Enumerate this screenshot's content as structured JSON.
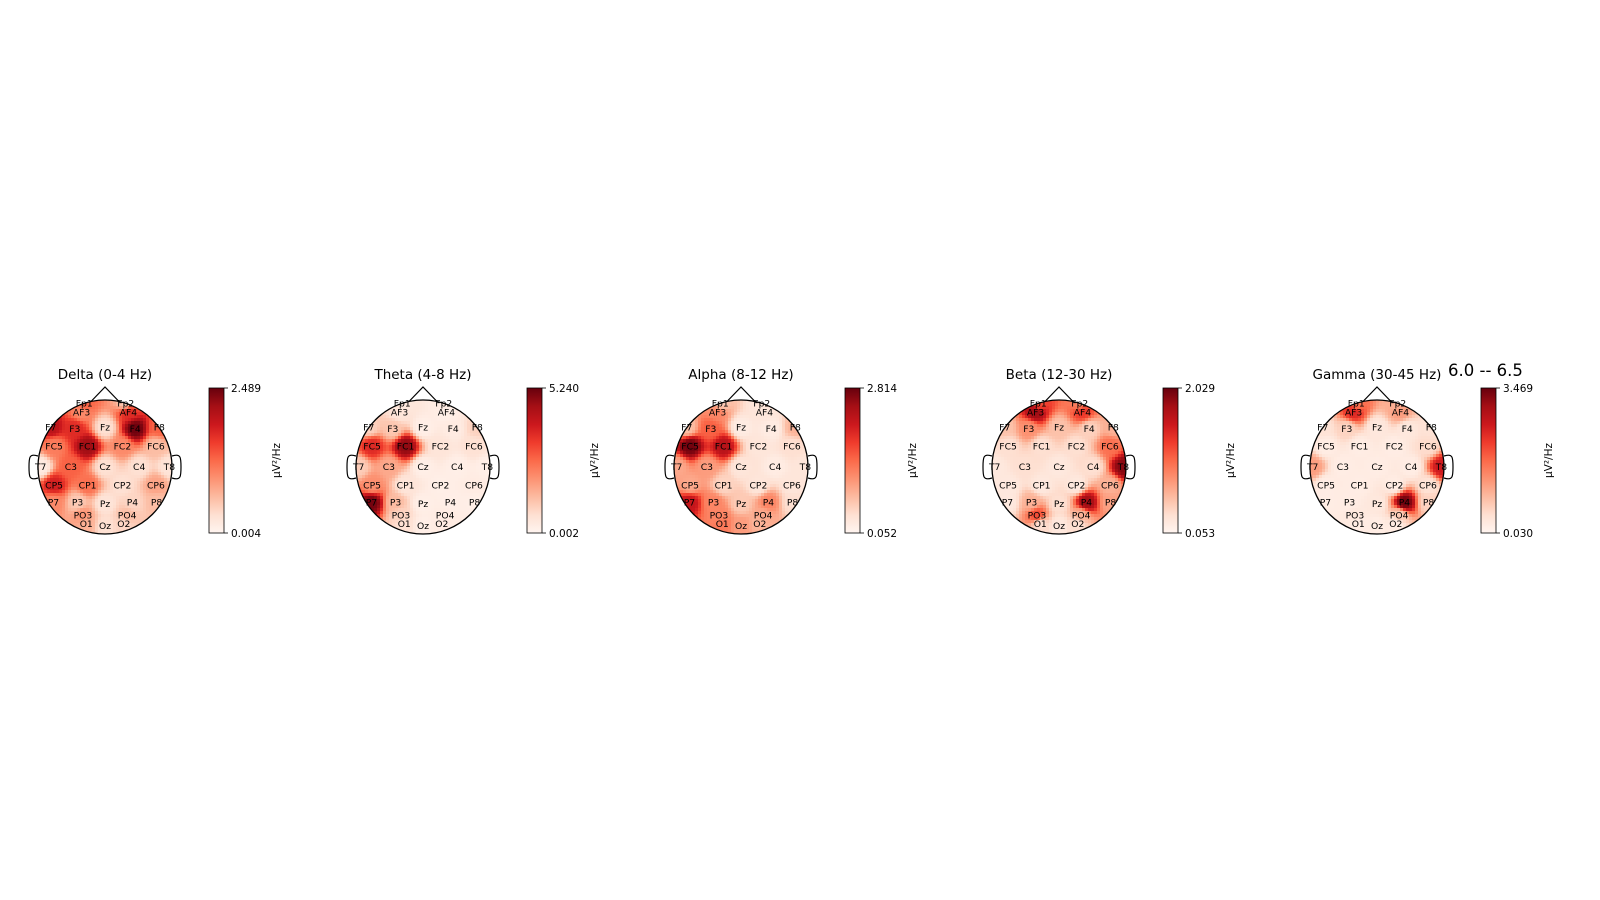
{
  "figure": {
    "suptitle": "6.0 -- 6.5"
  },
  "chart_data": {
    "type": "heatmap",
    "colormap": "Reds",
    "colorbar_label": "µV²/Hz",
    "electrodes": [
      {
        "name": "Fp1",
        "x": -0.31,
        "y": 0.95
      },
      {
        "name": "Fp2",
        "x": 0.31,
        "y": 0.95
      },
      {
        "name": "AF3",
        "x": -0.35,
        "y": 0.82
      },
      {
        "name": "AF4",
        "x": 0.35,
        "y": 0.82
      },
      {
        "name": "F7",
        "x": -0.81,
        "y": 0.59
      },
      {
        "name": "F3",
        "x": -0.45,
        "y": 0.57
      },
      {
        "name": "Fz",
        "x": 0.0,
        "y": 0.59
      },
      {
        "name": "F4",
        "x": 0.45,
        "y": 0.57
      },
      {
        "name": "F8",
        "x": 0.81,
        "y": 0.59
      },
      {
        "name": "FC5",
        "x": -0.76,
        "y": 0.31
      },
      {
        "name": "FC1",
        "x": -0.26,
        "y": 0.31
      },
      {
        "name": "FC2",
        "x": 0.26,
        "y": 0.31
      },
      {
        "name": "FC6",
        "x": 0.76,
        "y": 0.31
      },
      {
        "name": "T7",
        "x": -0.96,
        "y": 0.0
      },
      {
        "name": "C3",
        "x": -0.51,
        "y": 0.0
      },
      {
        "name": "Cz",
        "x": 0.0,
        "y": 0.0
      },
      {
        "name": "C4",
        "x": 0.51,
        "y": 0.0
      },
      {
        "name": "T8",
        "x": 0.96,
        "y": 0.0
      },
      {
        "name": "CP5",
        "x": -0.76,
        "y": -0.27
      },
      {
        "name": "CP1",
        "x": -0.26,
        "y": -0.27
      },
      {
        "name": "CP2",
        "x": 0.26,
        "y": -0.27
      },
      {
        "name": "CP6",
        "x": 0.76,
        "y": -0.27
      },
      {
        "name": "P7",
        "x": -0.77,
        "y": -0.53
      },
      {
        "name": "P3",
        "x": -0.41,
        "y": -0.53
      },
      {
        "name": "Pz",
        "x": 0.0,
        "y": -0.55
      },
      {
        "name": "P4",
        "x": 0.41,
        "y": -0.53
      },
      {
        "name": "P8",
        "x": 0.77,
        "y": -0.53
      },
      {
        "name": "PO3",
        "x": -0.33,
        "y": -0.72
      },
      {
        "name": "PO4",
        "x": 0.33,
        "y": -0.72
      },
      {
        "name": "O1",
        "x": -0.28,
        "y": -0.85
      },
      {
        "name": "Oz",
        "x": 0.0,
        "y": -0.88
      },
      {
        "name": "O2",
        "x": 0.28,
        "y": -0.85
      }
    ],
    "panels": [
      {
        "title": "Delta (0-4 Hz)",
        "vmin": 0.004,
        "vmax": 2.489,
        "vmin_label": "0.004",
        "vmax_label": "2.489",
        "values": {
          "Fp1": 1.3,
          "Fp2": 0.5,
          "AF3": 1.0,
          "AF4": 1.7,
          "F7": 2.0,
          "F3": 1.7,
          "Fz": 0.3,
          "F4": 2.45,
          "F8": 1.3,
          "FC5": 1.1,
          "FC1": 2.2,
          "FC2": 1.0,
          "FC6": 0.6,
          "T7": 0.15,
          "C3": 1.3,
          "Cz": 0.3,
          "C4": 0.3,
          "T8": 0.25,
          "CP5": 1.8,
          "CP1": 1.2,
          "CP2": 0.3,
          "CP6": 0.8,
          "P7": 1.0,
          "P3": 0.5,
          "Pz": 0.25,
          "P4": 0.4,
          "P8": 0.6,
          "PO3": 0.9,
          "PO4": 0.6,
          "O1": 0.7,
          "Oz": 0.3,
          "O2": 0.4
        }
      },
      {
        "title": "Theta (4-8 Hz)",
        "vmin": 0.002,
        "vmax": 5.24,
        "vmin_label": "0.002",
        "vmax_label": "5.240",
        "values": {
          "Fp1": 0.4,
          "Fp2": 0.3,
          "AF3": 0.5,
          "AF4": 0.2,
          "F7": 0.9,
          "F3": 1.1,
          "Fz": 0.2,
          "F4": 0.3,
          "F8": 0.9,
          "FC5": 3.6,
          "FC1": 4.8,
          "FC2": 0.5,
          "FC6": 0.6,
          "T7": 1.0,
          "C3": 1.6,
          "Cz": 0.2,
          "C4": 0.2,
          "T8": 0.2,
          "CP5": 2.0,
          "CP1": 0.5,
          "CP2": 0.2,
          "CP6": 0.3,
          "P7": 5.1,
          "P3": 1.3,
          "Pz": 0.2,
          "P4": 0.2,
          "P8": 0.2,
          "PO3": 0.9,
          "PO4": 0.3,
          "O1": 0.6,
          "Oz": 0.2,
          "O2": 0.3
        }
      },
      {
        "title": "Alpha (8-12 Hz)",
        "vmin": 0.052,
        "vmax": 2.814,
        "vmin_label": "0.052",
        "vmax_label": "2.814",
        "values": {
          "Fp1": 0.6,
          "Fp2": 0.3,
          "AF3": 1.2,
          "AF4": 0.3,
          "F7": 0.7,
          "F3": 1.5,
          "Fz": 0.2,
          "F4": 0.2,
          "F8": 0.8,
          "FC5": 2.75,
          "FC1": 2.3,
          "FC2": 0.3,
          "FC6": 0.4,
          "T7": 0.9,
          "C3": 1.0,
          "Cz": 0.3,
          "C4": 0.2,
          "T8": 0.3,
          "CP5": 0.9,
          "CP1": 0.5,
          "CP2": 0.3,
          "CP6": 0.3,
          "P7": 2.2,
          "P3": 1.2,
          "Pz": 0.6,
          "P4": 1.2,
          "P8": 0.4,
          "PO3": 1.2,
          "PO4": 0.9,
          "O1": 1.3,
          "Oz": 1.0,
          "O2": 0.8
        }
      },
      {
        "title": "Beta (12-30 Hz)",
        "vmin": 0.053,
        "vmax": 2.029,
        "vmin_label": "0.053",
        "vmax_label": "2.029",
        "values": {
          "Fp1": 1.2,
          "Fp2": 0.9,
          "AF3": 1.8,
          "AF4": 1.3,
          "F7": 0.5,
          "F3": 0.8,
          "Fz": 0.5,
          "F4": 0.4,
          "F8": 0.6,
          "FC5": 0.3,
          "FC1": 0.3,
          "FC2": 0.3,
          "FC6": 1.0,
          "T7": 0.2,
          "C3": 0.3,
          "Cz": 0.2,
          "C4": 0.3,
          "T8": 1.9,
          "CP5": 0.2,
          "CP1": 0.2,
          "CP2": 0.2,
          "CP6": 0.6,
          "P7": 0.2,
          "P3": 0.6,
          "Pz": 0.3,
          "P4": 1.8,
          "P8": 0.7,
          "PO3": 1.2,
          "PO4": 0.6,
          "O1": 0.3,
          "Oz": 0.2,
          "O2": 0.3
        }
      },
      {
        "title": "Gamma (30-45 Hz)",
        "vmin": 0.03,
        "vmax": 3.469,
        "vmin_label": "0.030",
        "vmax_label": "3.469",
        "values": {
          "Fp1": 1.6,
          "Fp2": 1.0,
          "AF3": 2.4,
          "AF4": 1.2,
          "F7": 0.4,
          "F3": 0.6,
          "Fz": 0.3,
          "F4": 0.3,
          "F8": 0.4,
          "FC5": 0.2,
          "FC1": 0.2,
          "FC2": 0.2,
          "FC6": 0.5,
          "T7": 1.2,
          "C3": 0.2,
          "Cz": 0.2,
          "C4": 0.2,
          "T8": 2.6,
          "CP5": 0.2,
          "CP1": 0.2,
          "CP2": 0.2,
          "CP6": 0.4,
          "P7": 0.2,
          "P3": 0.2,
          "Pz": 0.3,
          "P4": 3.4,
          "P8": 0.6,
          "PO3": 0.3,
          "PO4": 0.7,
          "O1": 0.2,
          "Oz": 0.2,
          "O2": 0.2
        }
      }
    ]
  }
}
